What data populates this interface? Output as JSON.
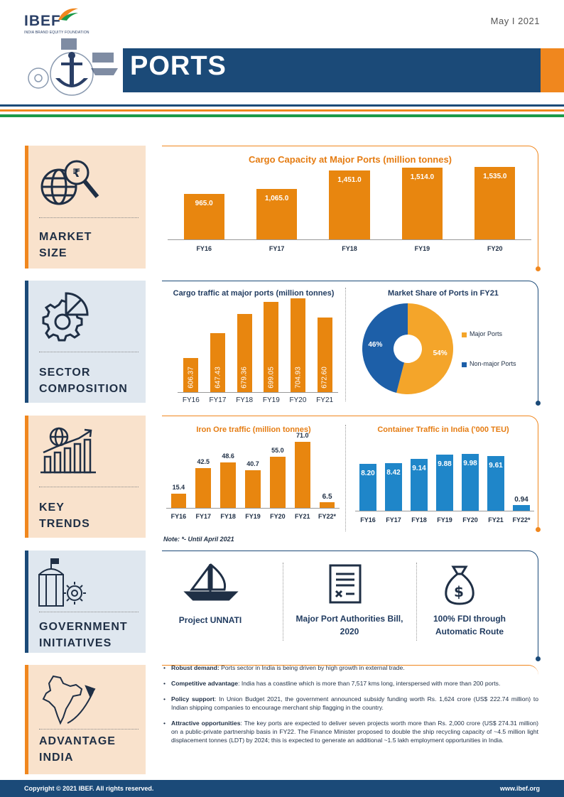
{
  "header": {
    "logo": "IBEF",
    "logo_sub": "INDIA BRAND EQUITY FOUNDATION",
    "date": "May  I  2021",
    "title": "PORTS"
  },
  "colors": {
    "navy": "#1b4a78",
    "orange": "#f0871e",
    "green": "#1b9a48",
    "bar_blue": "#1f86c9"
  },
  "sections": [
    {
      "label_lines": [
        "MARKET",
        "SIZE"
      ],
      "icon": "globe-rupee-magnifier-icon"
    },
    {
      "label_lines": [
        "SECTOR",
        "COMPOSITION"
      ],
      "icon": "gear-pie-icon"
    },
    {
      "label_lines": [
        "KEY",
        "TRENDS"
      ],
      "icon": "globe-bar-chart-icon"
    },
    {
      "label_lines": [
        "GOVERNMENT",
        "INITIATIVES"
      ],
      "icon": "building-bulb-icon"
    },
    {
      "label_lines": [
        "ADVANTAGE",
        "INDIA"
      ],
      "icon": "india-map-plane-icon"
    }
  ],
  "chart_data": [
    {
      "type": "bar",
      "title": "Cargo Capacity at Major Ports (million tonnes)",
      "categories": [
        "FY16",
        "FY17",
        "FY18",
        "FY19",
        "FY20"
      ],
      "values": [
        965.0,
        1065.0,
        1451.0,
        1514.0,
        1535.0
      ],
      "value_labels": [
        "965.0",
        "1,065.0",
        "1,451.0",
        "1,514.0",
        "1,535.0"
      ],
      "ylim": [
        0,
        1800
      ]
    },
    {
      "type": "bar",
      "title": "Cargo traffic at major ports (million tonnes)",
      "categories": [
        "FY16",
        "FY17",
        "FY18",
        "FY19",
        "FY20",
        "FY21"
      ],
      "values": [
        606.37,
        647.43,
        679.36,
        699.05,
        704.93,
        672.6
      ],
      "value_labels": [
        "606.37",
        "647.43",
        "679.36",
        "699.05",
        "704.93",
        "672.60"
      ],
      "ylim": [
        550,
        720
      ]
    },
    {
      "type": "pie",
      "title": "Market Share of Ports in FY21",
      "labels": [
        "Major Ports",
        "Non-major Ports"
      ],
      "values": [
        54,
        46
      ],
      "value_labels": [
        "54%",
        "46%"
      ],
      "legend": "right"
    },
    {
      "type": "bar",
      "title": "Iron Ore traffic (million tonnes)",
      "categories": [
        "FY16",
        "FY17",
        "FY18",
        "FY19",
        "FY20",
        "FY21",
        "FY22*"
      ],
      "values": [
        15.4,
        42.5,
        48.6,
        40.7,
        55.0,
        71.0,
        6.5
      ],
      "value_labels": [
        "15.4",
        "42.5",
        "48.6",
        "40.7",
        "55.0",
        "71.0",
        "6.5"
      ],
      "ylim": [
        0,
        75
      ]
    },
    {
      "type": "bar",
      "title": "Container Traffic in India ('000 TEU)",
      "categories": [
        "FY16",
        "FY17",
        "FY18",
        "FY19",
        "FY20",
        "FY21",
        "FY22*"
      ],
      "values": [
        8.2,
        8.42,
        9.14,
        9.88,
        9.98,
        9.61,
        0.94
      ],
      "value_labels": [
        "8.20",
        "8.42",
        "9.14",
        "9.88",
        "9.98",
        "9.61",
        "0.94"
      ],
      "ylim": [
        0,
        10.5
      ]
    }
  ],
  "note": "Note: *- Until April 2021",
  "initiatives": [
    {
      "label": "Project UNNATI",
      "icon": "sailboat-icon"
    },
    {
      "label": "Major Port Authorities Bill, 2020",
      "icon": "document-icon"
    },
    {
      "label": "100% FDI through Automatic Route",
      "icon": "money-bag-icon"
    }
  ],
  "advantages": [
    {
      "title": "Robust demand:",
      "text": " Ports sector in India is being driven by high growth in external trade."
    },
    {
      "title": "Competitive advantage",
      "text": ": India has a coastline which is more than 7,517 kms long, interspersed with more than 200 ports."
    },
    {
      "title": "Policy support",
      "text": ": In Union Budget 2021, the government announced subsidy funding worth Rs. 1,624 crore (US$ 222.74 million) to Indian shipping companies to encourage merchant ship flagging in the country."
    },
    {
      "title": "Attractive opportunities",
      "text": ": The key ports are expected to deliver seven projects worth more than Rs. 2,000 crore (US$ 274.31 million) on a public-private partnership basis in FY22. The Finance Minister proposed to double the ship recycling capacity of ~4.5 million light displacement tonnes (LDT) by 2024; this is expected to generate an additional ~1.5 lakh employment opportunities in India."
    }
  ],
  "footer": {
    "copyright": "Copyright © 2021 IBEF. All rights reserved.",
    "site": "www.ibef.org"
  }
}
